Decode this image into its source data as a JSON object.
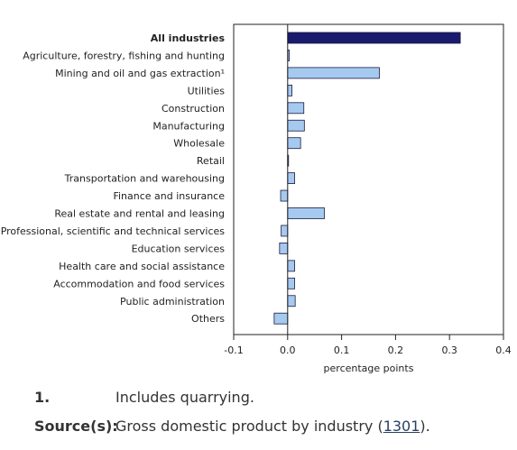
{
  "chart_data": {
    "type": "bar",
    "orientation": "horizontal",
    "title": "",
    "xlabel": "percentage points",
    "xlim": [
      -0.1,
      0.4
    ],
    "xticks": [
      "-0.1",
      "0.0",
      "0.1",
      "0.2",
      "0.3",
      "0.4"
    ],
    "grid": false,
    "legend": "none",
    "categories": [
      "All industries",
      "Agriculture, forestry, fishing and hunting",
      "Mining and oil and gas extraction¹",
      "Utilities",
      "Construction",
      "Manufacturing",
      "Wholesale",
      "Retail",
      "Transportation and warehousing",
      "Finance and insurance",
      "Real estate and rental and leasing",
      "Professional, scientific and technical services",
      "Education services",
      "Health care and social assistance",
      "Accommodation and food services",
      "Public administration",
      "Others"
    ],
    "values": [
      0.32,
      0.003,
      0.17,
      0.008,
      0.03,
      0.031,
      0.024,
      0.001,
      0.013,
      -0.013,
      0.068,
      -0.012,
      -0.015,
      0.013,
      0.013,
      0.014,
      -0.025
    ],
    "highlight_index": 0,
    "colors": {
      "highlight": "#1a1a6e",
      "bar": "#a6c9f0",
      "border": "#1a1a40",
      "axis": "#222222"
    }
  },
  "footnotes": {
    "note_number": "1.",
    "note_text": "Includes quarrying.",
    "source_label": "Source(s):",
    "source_text_before": "Gross domestic product by industry (",
    "source_link": "1301",
    "source_text_after": ")."
  }
}
